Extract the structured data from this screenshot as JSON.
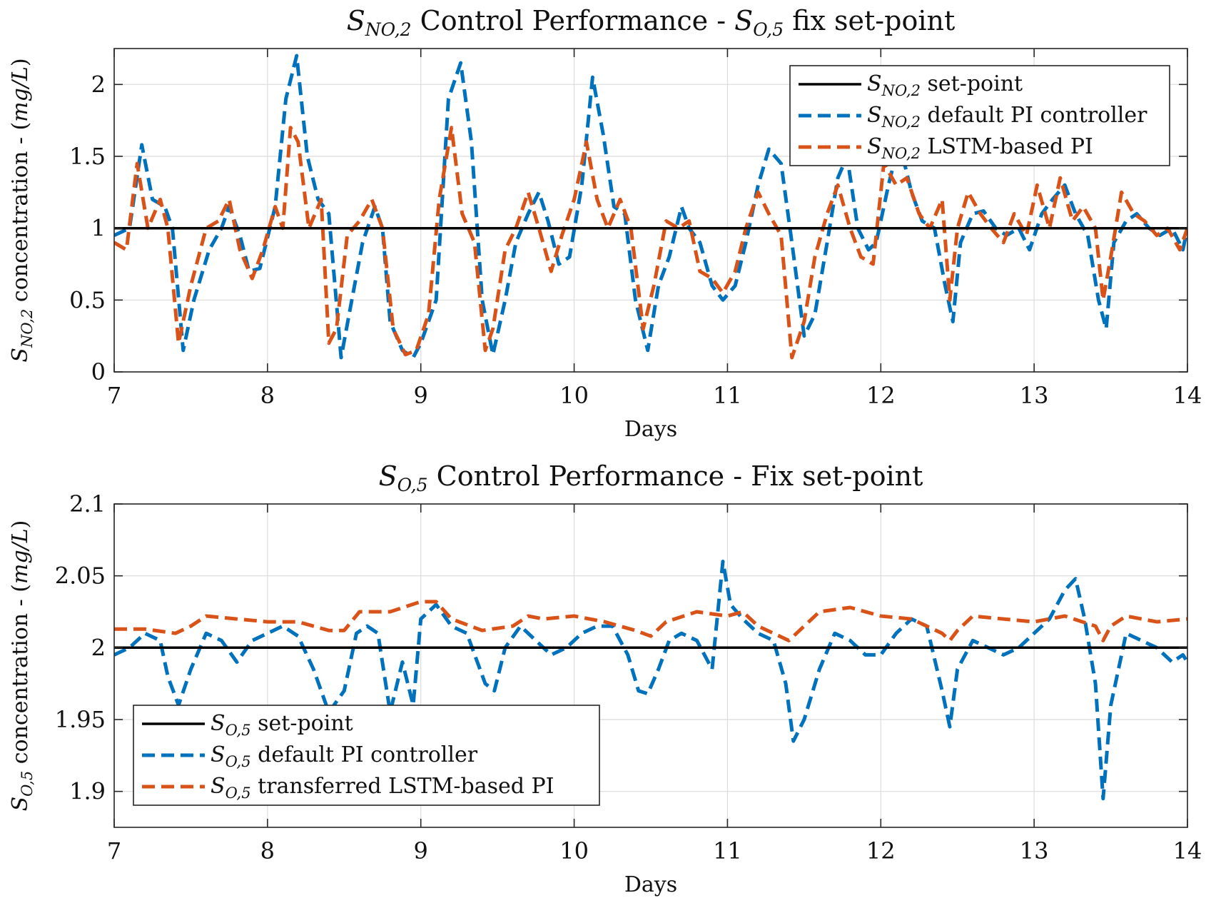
{
  "chart_data": [
    {
      "type": "line",
      "title_parts": {
        "s1": "S",
        "sub1": "NO,2",
        "mid": " Control Performance - ",
        "s2": "S",
        "sub2": "O,5",
        "end": " fix set-point"
      },
      "xlabel": "Days",
      "ylabel": {
        "s": "S",
        "sub": "NO,2",
        "text": " concentration - (",
        "unit": "mg/L",
        "close": ")"
      },
      "xlim": [
        7,
        14
      ],
      "ylim": [
        0,
        2.25
      ],
      "xticks": [
        7,
        8,
        9,
        10,
        11,
        12,
        13,
        14
      ],
      "xtick_labels": [
        "7",
        "8",
        "9",
        "10",
        "11",
        "12",
        "13",
        "14"
      ],
      "yticks": [
        0,
        0.5,
        1,
        1.5,
        2
      ],
      "ytick_labels": [
        "0",
        "0.5",
        "1",
        "1.5",
        "2"
      ],
      "grid": true,
      "legend_position": "top-right",
      "series": [
        {
          "name": "set-point",
          "label_s": "S",
          "label_sub": "NO,2",
          "label_rest": " set-point",
          "color": "#000000",
          "style": "solid",
          "x": [
            7,
            14
          ],
          "y": [
            1.0,
            1.0
          ]
        },
        {
          "name": "default PI controller",
          "label_s": "S",
          "label_sub": "NO,2",
          "label_rest": " default PI controller",
          "color": "#0072BD",
          "style": "dashed",
          "x": [
            7.0,
            7.1,
            7.18,
            7.25,
            7.33,
            7.38,
            7.45,
            7.52,
            7.62,
            7.7,
            7.75,
            7.82,
            7.88,
            7.95,
            8.05,
            8.12,
            8.19,
            8.26,
            8.33,
            8.4,
            8.48,
            8.55,
            8.62,
            8.7,
            8.75,
            8.8,
            8.88,
            8.95,
            9.0,
            9.1,
            9.18,
            9.26,
            9.33,
            9.4,
            9.47,
            9.55,
            9.62,
            9.7,
            9.77,
            9.83,
            9.9,
            9.97,
            10.05,
            10.12,
            10.19,
            10.26,
            10.33,
            10.4,
            10.48,
            10.55,
            10.62,
            10.7,
            10.75,
            10.82,
            10.9,
            10.97,
            11.05,
            11.12,
            11.2,
            11.27,
            11.35,
            11.42,
            11.5,
            11.57,
            11.65,
            11.72,
            11.78,
            11.85,
            11.92,
            11.97,
            12.05,
            12.12,
            12.2,
            12.27,
            12.35,
            12.42,
            12.47,
            12.52,
            12.6,
            12.67,
            12.75,
            12.82,
            12.9,
            12.97,
            13.05,
            13.12,
            13.2,
            13.27,
            13.35,
            13.42,
            13.47,
            13.52,
            13.6,
            13.67,
            13.75,
            13.82,
            13.9,
            13.97,
            14.0
          ],
          "y": [
            0.95,
            1.0,
            1.58,
            1.2,
            1.15,
            1.0,
            0.15,
            0.5,
            0.85,
            1.0,
            1.15,
            0.95,
            0.7,
            0.72,
            1.15,
            1.9,
            2.2,
            1.5,
            1.2,
            1.1,
            0.1,
            0.5,
            0.9,
            1.15,
            1.0,
            0.35,
            0.15,
            0.1,
            0.2,
            0.5,
            1.9,
            2.15,
            1.6,
            0.5,
            0.12,
            0.5,
            0.9,
            1.1,
            1.25,
            1.05,
            0.75,
            0.8,
            1.3,
            2.05,
            1.65,
            1.15,
            1.1,
            0.5,
            0.15,
            0.6,
            0.8,
            1.15,
            1.0,
            0.9,
            0.6,
            0.5,
            0.6,
            0.9,
            1.3,
            1.55,
            1.45,
            0.9,
            0.25,
            0.4,
            0.9,
            1.35,
            1.5,
            1.0,
            0.85,
            0.9,
            1.3,
            1.6,
            1.25,
            1.05,
            1.0,
            0.6,
            0.35,
            0.9,
            1.1,
            1.12,
            1.0,
            0.95,
            1.0,
            0.85,
            1.1,
            1.2,
            1.3,
            1.1,
            0.95,
            0.5,
            0.3,
            0.9,
            1.05,
            1.1,
            1.0,
            0.95,
            1.0,
            0.85,
            1.0
          ]
        },
        {
          "name": "LSTM-based PI",
          "label_s": "S",
          "label_sub": "NO,2",
          "label_rest": " LSTM-based PI",
          "color": "#D95319",
          "style": "dashed",
          "x": [
            7.0,
            7.08,
            7.15,
            7.22,
            7.3,
            7.35,
            7.42,
            7.5,
            7.6,
            7.68,
            7.75,
            7.82,
            7.9,
            7.97,
            8.05,
            8.1,
            8.15,
            8.2,
            8.27,
            8.35,
            8.4,
            8.45,
            8.52,
            8.6,
            8.68,
            8.75,
            8.82,
            8.9,
            8.97,
            9.05,
            9.12,
            9.2,
            9.27,
            9.35,
            9.42,
            9.47,
            9.55,
            9.62,
            9.7,
            9.77,
            9.85,
            9.92,
            10.0,
            10.08,
            10.15,
            10.22,
            10.3,
            10.37,
            10.45,
            10.52,
            10.6,
            10.68,
            10.75,
            10.82,
            10.9,
            10.97,
            11.05,
            11.12,
            11.2,
            11.27,
            11.35,
            11.42,
            11.5,
            11.57,
            11.65,
            11.72,
            11.8,
            11.87,
            11.95,
            12.02,
            12.1,
            12.17,
            12.25,
            12.32,
            12.4,
            12.45,
            12.5,
            12.57,
            12.65,
            12.72,
            12.8,
            12.87,
            12.95,
            13.02,
            13.1,
            13.17,
            13.25,
            13.32,
            13.4,
            13.45,
            13.5,
            13.57,
            13.65,
            13.72,
            13.8,
            13.87,
            13.95,
            14.0
          ],
          "y": [
            0.9,
            0.85,
            1.45,
            1.0,
            1.2,
            1.0,
            0.2,
            0.6,
            1.0,
            1.05,
            1.2,
            0.85,
            0.65,
            0.85,
            1.15,
            1.0,
            1.7,
            1.6,
            1.0,
            1.2,
            0.2,
            0.3,
            0.95,
            1.05,
            1.2,
            1.0,
            0.3,
            0.12,
            0.15,
            0.4,
            1.2,
            1.7,
            1.1,
            0.9,
            0.15,
            0.3,
            0.85,
            1.0,
            1.25,
            1.0,
            0.7,
            0.95,
            1.2,
            1.6,
            1.2,
            1.0,
            1.2,
            1.0,
            0.3,
            0.6,
            1.05,
            1.0,
            1.05,
            0.7,
            0.65,
            0.55,
            0.7,
            1.0,
            1.25,
            1.1,
            0.95,
            0.1,
            0.35,
            0.8,
            1.1,
            1.3,
            1.0,
            0.8,
            0.75,
            1.45,
            1.3,
            1.35,
            1.1,
            1.0,
            1.2,
            0.5,
            1.0,
            1.25,
            1.1,
            1.0,
            0.9,
            1.1,
            0.95,
            1.3,
            1.0,
            1.35,
            1.05,
            1.15,
            1.0,
            0.5,
            0.8,
            1.25,
            1.1,
            1.05,
            0.95,
            1.0,
            0.85,
            1.0
          ]
        }
      ]
    },
    {
      "type": "line",
      "title_parts": {
        "s1": "S",
        "sub1": "O,5",
        "mid": " Control Performance - Fix set-point"
      },
      "xlabel": "Days",
      "ylabel": {
        "s": "S",
        "sub": "O,5",
        "text": " concentration - (",
        "unit": "mg/L",
        "close": ")"
      },
      "xlim": [
        7,
        14
      ],
      "ylim": [
        1.875,
        2.1
      ],
      "xticks": [
        7,
        8,
        9,
        10,
        11,
        12,
        13,
        14
      ],
      "xtick_labels": [
        "7",
        "8",
        "9",
        "10",
        "11",
        "12",
        "13",
        "14"
      ],
      "yticks": [
        1.9,
        1.95,
        2,
        2.05,
        2.1
      ],
      "ytick_labels": [
        "1.9",
        "1.95",
        "2",
        "2.05",
        "2.1"
      ],
      "grid": true,
      "legend_position": "bottom-left",
      "series": [
        {
          "name": "set-point",
          "label_s": "S",
          "label_sub": "O,5",
          "label_rest": " set-point",
          "color": "#000000",
          "style": "solid",
          "x": [
            7,
            14
          ],
          "y": [
            2.0,
            2.0
          ]
        },
        {
          "name": "default PI controller",
          "label_s": "S",
          "label_sub": "O,5",
          "label_rest": " default PI controller",
          "color": "#0072BD",
          "style": "dashed",
          "x": [
            7.0,
            7.1,
            7.2,
            7.3,
            7.35,
            7.42,
            7.5,
            7.6,
            7.7,
            7.8,
            7.9,
            8.0,
            8.1,
            8.2,
            8.3,
            8.4,
            8.5,
            8.58,
            8.65,
            8.72,
            8.8,
            8.88,
            8.95,
            9.0,
            9.1,
            9.2,
            9.3,
            9.42,
            9.48,
            9.55,
            9.65,
            9.75,
            9.85,
            9.95,
            10.05,
            10.15,
            10.25,
            10.35,
            10.42,
            10.48,
            10.55,
            10.62,
            10.7,
            10.8,
            10.9,
            10.97,
            11.02,
            11.1,
            11.2,
            11.3,
            11.38,
            11.43,
            11.5,
            11.6,
            11.7,
            11.8,
            11.9,
            12.0,
            12.1,
            12.2,
            12.3,
            12.4,
            12.45,
            12.5,
            12.6,
            12.7,
            12.8,
            12.9,
            13.0,
            13.1,
            13.2,
            13.27,
            13.33,
            13.4,
            13.45,
            13.5,
            13.6,
            13.7,
            13.8,
            13.9,
            13.97,
            14.0
          ],
          "y": [
            1.995,
            2.0,
            2.01,
            2.005,
            1.98,
            1.96,
            1.985,
            2.01,
            2.005,
            1.99,
            2.005,
            2.01,
            2.015,
            2.008,
            1.985,
            1.955,
            1.97,
            2.01,
            2.015,
            2.01,
            1.955,
            1.99,
            1.96,
            2.02,
            2.03,
            2.015,
            2.01,
            1.975,
            1.97,
            2.0,
            2.015,
            2.005,
            1.995,
            2.0,
            2.01,
            2.015,
            2.015,
            1.995,
            1.97,
            1.968,
            1.985,
            2.005,
            2.01,
            2.005,
            1.985,
            2.06,
            2.03,
            2.02,
            2.01,
            2.005,
            1.975,
            1.935,
            1.95,
            1.985,
            2.01,
            2.005,
            1.995,
            1.995,
            2.01,
            2.02,
            2.015,
            1.97,
            1.945,
            1.985,
            2.005,
            2.0,
            1.995,
            2.0,
            2.01,
            2.02,
            2.04,
            2.048,
            2.02,
            1.975,
            1.895,
            1.96,
            2.01,
            2.005,
            2.0,
            1.99,
            1.995,
            1.99
          ]
        },
        {
          "name": "transferred LSTM-based PI",
          "label_s": "S",
          "label_sub": "O,5",
          "label_rest": " transferred LSTM-based PI",
          "color": "#D95319",
          "style": "dashed",
          "x": [
            7.0,
            7.2,
            7.4,
            7.5,
            7.6,
            7.8,
            8.0,
            8.2,
            8.4,
            8.5,
            8.6,
            8.8,
            9.0,
            9.1,
            9.2,
            9.4,
            9.6,
            9.7,
            9.8,
            10.0,
            10.2,
            10.4,
            10.5,
            10.6,
            10.8,
            11.0,
            11.1,
            11.2,
            11.4,
            11.5,
            11.6,
            11.8,
            12.0,
            12.2,
            12.4,
            12.45,
            12.5,
            12.6,
            12.8,
            13.0,
            13.2,
            13.4,
            13.45,
            13.5,
            13.6,
            13.8,
            14.0
          ],
          "y": [
            2.013,
            2.013,
            2.01,
            2.015,
            2.022,
            2.02,
            2.018,
            2.018,
            2.012,
            2.012,
            2.025,
            2.025,
            2.032,
            2.032,
            2.02,
            2.012,
            2.015,
            2.022,
            2.02,
            2.022,
            2.018,
            2.012,
            2.008,
            2.018,
            2.025,
            2.022,
            2.025,
            2.015,
            2.005,
            2.015,
            2.025,
            2.028,
            2.022,
            2.02,
            2.01,
            2.005,
            2.012,
            2.022,
            2.02,
            2.018,
            2.022,
            2.015,
            2.005,
            2.015,
            2.022,
            2.018,
            2.02
          ]
        }
      ]
    }
  ]
}
